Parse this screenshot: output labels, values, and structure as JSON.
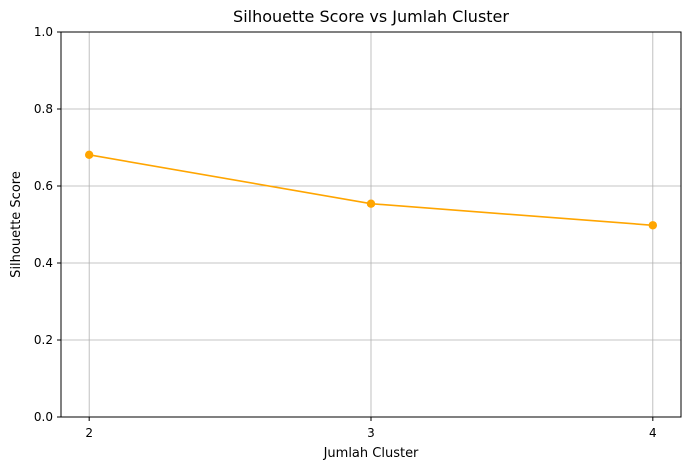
{
  "chart_data": {
    "type": "line",
    "title": "Silhouette Score vs Jumlah Cluster",
    "xlabel": "Jumlah Cluster",
    "ylabel": "Silhouette Score",
    "x": [
      2,
      3,
      4
    ],
    "x_ticks": [
      "2",
      "3",
      "4"
    ],
    "xlim": [
      1.9,
      4.1
    ],
    "ylim": [
      0,
      1
    ],
    "y_ticks": [
      "0.0",
      "0.2",
      "0.4",
      "0.6",
      "0.8",
      "1.0"
    ],
    "grid": true,
    "series": [
      {
        "values": [
          0.681,
          0.554,
          0.498
        ],
        "color": "#ffa500",
        "marker": "circle"
      }
    ]
  }
}
